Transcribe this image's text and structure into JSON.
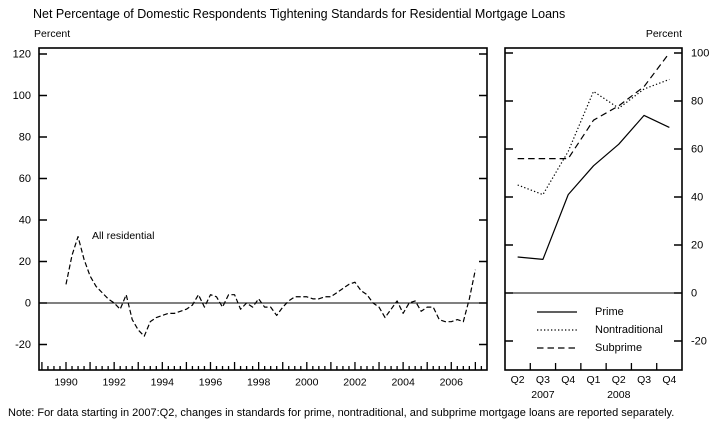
{
  "title": "Net Percentage of Domestic Respondents Tightening Standards for Residential Mortgage Loans",
  "note": "Note: For data starting in 2007:Q2, changes in standards for prime, nontraditional, and subprime mortgage loans are reported separately.",
  "panels": {
    "left": {
      "unit": "Percent"
    },
    "right": {
      "unit": "Percent"
    }
  },
  "colors": {
    "line": "#000000",
    "text": "#000000",
    "background": "#ffffff"
  },
  "chart_data": [
    {
      "type": "line",
      "panel": "left",
      "ylabel": "Percent",
      "ylim": [
        -32,
        122
      ],
      "yticks": [
        -20,
        0,
        20,
        40,
        60,
        80,
        100,
        120
      ],
      "grid": false,
      "x_unit": "quarterly",
      "x_range": [
        "1990:Q1",
        "2007:Q1"
      ],
      "xtick_labels": [
        "1990",
        "1992",
        "1994",
        "1996",
        "1998",
        "2000",
        "2002",
        "2004",
        "2006"
      ],
      "annotation": {
        "text": "All residential"
      },
      "series": [
        {
          "name": "All residential",
          "style": "dashed",
          "values": [
            9,
            23,
            32,
            21,
            13,
            8,
            5,
            2,
            0,
            -3,
            4,
            -8,
            -13,
            -16,
            -9,
            -7,
            -6,
            -5,
            -5,
            -4,
            -3,
            -1,
            4,
            -2,
            4,
            3,
            -2,
            4,
            4,
            -3,
            0,
            -2,
            2,
            -2,
            -2,
            -6,
            -2,
            1,
            3,
            3,
            3,
            2,
            2,
            3,
            3,
            5,
            7,
            9,
            10,
            6,
            4,
            0,
            -2,
            -7,
            -3,
            1,
            -5,
            0,
            1,
            -4,
            -2,
            -2,
            -8,
            -9,
            -9,
            -8,
            -9,
            2,
            16
          ]
        }
      ]
    },
    {
      "type": "line",
      "panel": "right",
      "ylabel": "Percent",
      "ylim": [
        -32,
        102
      ],
      "yticks": [
        -20,
        0,
        20,
        40,
        60,
        80,
        100
      ],
      "grid": false,
      "categories": [
        "Q2",
        "Q3",
        "Q4",
        "Q1",
        "Q2",
        "Q3",
        "Q4"
      ],
      "year_labels": [
        {
          "text": "2007",
          "center_index": 1
        },
        {
          "text": "2008",
          "center_index": 4
        }
      ],
      "legend_position": "inside-bottom-left",
      "series": [
        {
          "name": "Prime",
          "style": "solid",
          "values": [
            15,
            14,
            41,
            53,
            62,
            74,
            69
          ]
        },
        {
          "name": "Nontraditional",
          "style": "dotted",
          "values": [
            45,
            41,
            59,
            84,
            77,
            85,
            89
          ]
        },
        {
          "name": "Subprime",
          "style": "dashed",
          "values": [
            56,
            56,
            56,
            72,
            78,
            86,
            100
          ]
        }
      ]
    }
  ]
}
